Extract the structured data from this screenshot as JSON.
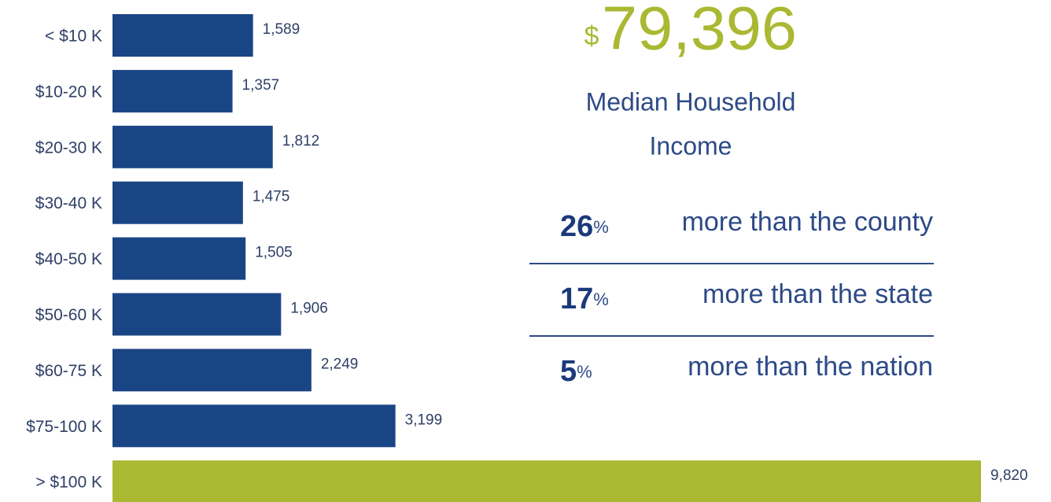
{
  "chart_data": {
    "type": "bar",
    "orientation": "horizontal",
    "categories": [
      "< $10 K",
      "$10-20 K",
      "$20-30 K",
      "$30-40 K",
      "$40-50 K",
      "$50-60 K",
      "$60-75 K",
      "$75-100 K",
      "> $100 K"
    ],
    "values": [
      1589,
      1357,
      1812,
      1475,
      1505,
      1906,
      2249,
      3199,
      9820
    ],
    "value_labels": [
      "1,589",
      "1,357",
      "1,812",
      "1,475",
      "1,505",
      "1,906",
      "2,249",
      "3,199",
      "9,820"
    ],
    "colors": [
      "#1a4585",
      "#1a4585",
      "#1a4585",
      "#1a4585",
      "#1a4585",
      "#1a4585",
      "#1a4585",
      "#1a4585",
      "#aab832"
    ]
  },
  "summary": {
    "currency": "$",
    "median": "79,396",
    "caption_line1": "Median Household",
    "caption_line2": "Income",
    "comparisons": [
      {
        "value": 26,
        "unit": "%",
        "text": "more than the county"
      },
      {
        "value": 17,
        "unit": "%",
        "text": "more than the state"
      },
      {
        "value": 5,
        "unit": "%",
        "text": "more than the nation"
      }
    ]
  }
}
